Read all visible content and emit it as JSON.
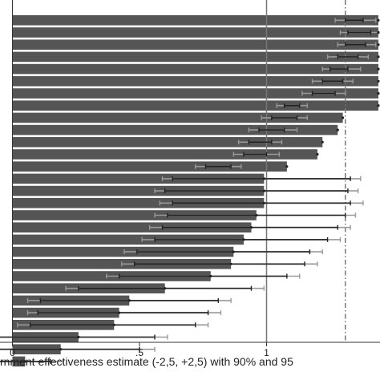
{
  "chart_data": {
    "type": "bar",
    "orientation": "horizontal",
    "xlabel": "rnment effectiveness estimate (-2,5, +2,5) with 90% and 95",
    "x_tick_labels": [
      "0",
      ".5",
      "1"
    ],
    "x_ticks": [
      0,
      0.5,
      1
    ],
    "xlim": [
      -0.04,
      1.44
    ],
    "reference_lines": [
      {
        "x": 1.0,
        "style": "solid"
      },
      {
        "x": 1.31,
        "style": "dashdot"
      }
    ],
    "bar_color": "#555555",
    "error_bar_colors": {
      "ci90": "#222222",
      "ci95": "#999999"
    },
    "series": [
      {
        "value": 1.44,
        "ci90": [
          1.31,
          1.38
        ],
        "ci95": [
          1.27,
          1.43
        ]
      },
      {
        "value": 1.44,
        "ci90": [
          1.32,
          1.41
        ],
        "ci95": [
          1.29,
          1.44
        ]
      },
      {
        "value": 1.44,
        "ci90": [
          1.31,
          1.39
        ],
        "ci95": [
          1.28,
          1.43
        ]
      },
      {
        "value": 1.44,
        "ci90": [
          1.28,
          1.36
        ],
        "ci95": [
          1.24,
          1.4
        ]
      },
      {
        "value": 1.44,
        "ci90": [
          1.25,
          1.32
        ],
        "ci95": [
          1.22,
          1.37
        ]
      },
      {
        "value": 1.44,
        "ci90": [
          1.22,
          1.3
        ],
        "ci95": [
          1.18,
          1.34
        ]
      },
      {
        "value": 1.44,
        "ci90": [
          1.18,
          1.27
        ],
        "ci95": [
          1.14,
          1.31
        ]
      },
      {
        "value": 1.44,
        "ci90": [
          1.07,
          1.13
        ],
        "ci95": [
          1.04,
          1.16
        ]
      },
      {
        "value": 1.3,
        "ci90": [
          1.02,
          1.12
        ],
        "ci95": [
          0.98,
          1.16
        ]
      },
      {
        "value": 1.28,
        "ci90": [
          0.97,
          1.07
        ],
        "ci95": [
          0.93,
          1.12
        ]
      },
      {
        "value": 1.22,
        "ci90": [
          0.93,
          1.02
        ],
        "ci95": [
          0.89,
          1.06
        ]
      },
      {
        "value": 1.2,
        "ci90": [
          0.91,
          1.0
        ],
        "ci95": [
          0.87,
          1.05
        ]
      },
      {
        "value": 1.08,
        "ci90": [
          0.76,
          0.86
        ],
        "ci95": [
          0.72,
          0.9
        ]
      },
      {
        "value": 0.99,
        "ci90": [
          0.63,
          1.33
        ],
        "ci95": [
          0.59,
          1.37
        ]
      },
      {
        "value": 0.99,
        "ci90": [
          0.6,
          1.32
        ],
        "ci95": [
          0.56,
          1.36
        ]
      },
      {
        "value": 0.99,
        "ci90": [
          0.63,
          1.33
        ],
        "ci95": [
          0.58,
          1.38
        ]
      },
      {
        "value": 0.96,
        "ci90": [
          0.61,
          1.31
        ],
        "ci95": [
          0.56,
          1.35
        ]
      },
      {
        "value": 0.94,
        "ci90": [
          0.59,
          1.28
        ],
        "ci95": [
          0.54,
          1.33
        ]
      },
      {
        "value": 0.91,
        "ci90": [
          0.56,
          1.24
        ],
        "ci95": [
          0.51,
          1.29
        ]
      },
      {
        "value": 0.87,
        "ci90": [
          0.49,
          1.17
        ],
        "ci95": [
          0.44,
          1.22
        ]
      },
      {
        "value": 0.86,
        "ci90": [
          0.48,
          1.15
        ],
        "ci95": [
          0.43,
          1.2
        ]
      },
      {
        "value": 0.78,
        "ci90": [
          0.42,
          1.08
        ],
        "ci95": [
          0.37,
          1.13
        ]
      },
      {
        "value": 0.6,
        "ci90": [
          0.26,
          0.94
        ],
        "ci95": [
          0.21,
          0.99
        ]
      },
      {
        "value": 0.46,
        "ci90": [
          0.11,
          0.81
        ],
        "ci95": [
          0.06,
          0.86
        ]
      },
      {
        "value": 0.42,
        "ci90": [
          0.1,
          0.77
        ],
        "ci95": [
          0.06,
          0.82
        ]
      },
      {
        "value": 0.4,
        "ci90": [
          0.07,
          0.72
        ],
        "ci95": [
          0.02,
          0.77
        ]
      },
      {
        "value": 0.26,
        "ci90": [
          -0.06,
          0.56
        ],
        "ci95": [
          -0.11,
          0.61
        ]
      },
      {
        "value": 0.19,
        "ci90": [
          -0.13,
          0.5
        ],
        "ci95": [
          -0.19,
          0.56
        ]
      },
      {
        "value": 0.05,
        "ci90": [
          -0.28,
          0.15
        ],
        "ci95": [
          -0.33,
          0.2
        ]
      }
    ]
  }
}
